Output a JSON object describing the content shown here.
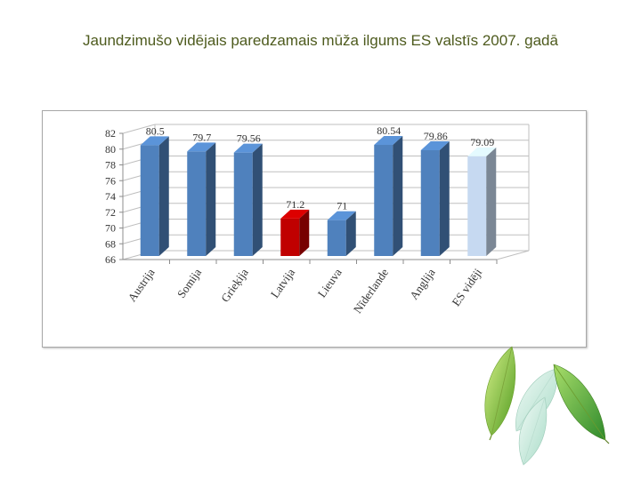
{
  "page": {
    "title": "Jaundzimušo vidējais paredzamais mūža ilgums ES valstīs 2007. gadā"
  },
  "leaves_icon": "leaves-icon",
  "chart_data": {
    "type": "bar",
    "title": "",
    "xlabel": "",
    "ylabel": "",
    "ylim": [
      66,
      82
    ],
    "yticks": [
      66,
      68,
      70,
      72,
      74,
      76,
      78,
      80,
      82
    ],
    "grid": true,
    "categories": [
      "Austrija",
      "Somija",
      "Grieķija",
      "Latvija",
      "Lieuva",
      "Nīderlande",
      "Anglija",
      "ES vidēji"
    ],
    "values": [
      80.5,
      79.7,
      79.56,
      71.2,
      71,
      80.54,
      79.86,
      79.09
    ],
    "value_labels": [
      "80.5",
      "79.7",
      "79.56",
      "71.2",
      "71",
      "80.54",
      "79.86",
      "79.09"
    ],
    "colors": {
      "default": "#4f81bd",
      "highlight": "#c00000",
      "average": "#c6d9f1"
    },
    "bar_colors": [
      "#4f81bd",
      "#4f81bd",
      "#4f81bd",
      "#c00000",
      "#4f81bd",
      "#4f81bd",
      "#4f81bd",
      "#c6d9f1"
    ]
  }
}
